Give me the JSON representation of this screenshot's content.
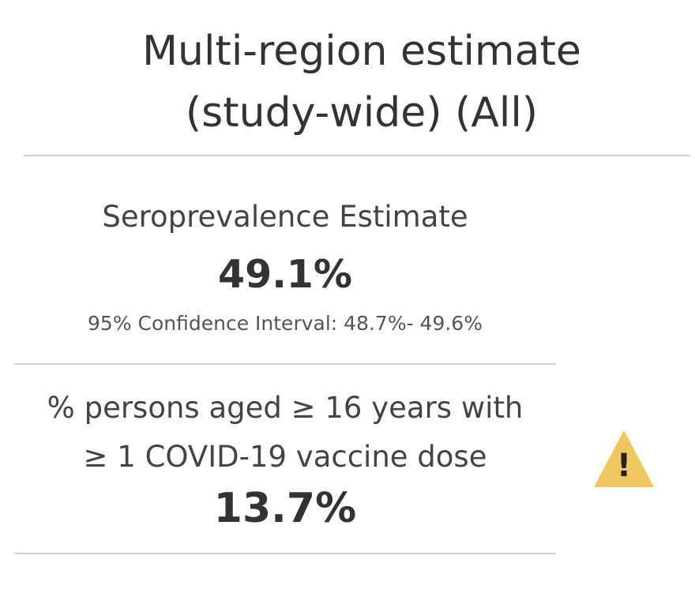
{
  "header": {
    "title_line1": "Multi-region estimate",
    "title_line2": "(study-wide) (All)"
  },
  "seroprevalence": {
    "label": "Seroprevalence Estimate",
    "value": "49.1%",
    "confidence_interval": "95% Confidence Interval: 48.7%- 49.6%"
  },
  "vaccination": {
    "label_line1": "%  persons aged ≥ 16 years with",
    "label_line2": "≥ 1 COVID-19 vaccine dose",
    "value": "13.7%",
    "warning_icon": "warning-icon",
    "warning_glyph": "!",
    "warning_color": "#efc75e"
  }
}
